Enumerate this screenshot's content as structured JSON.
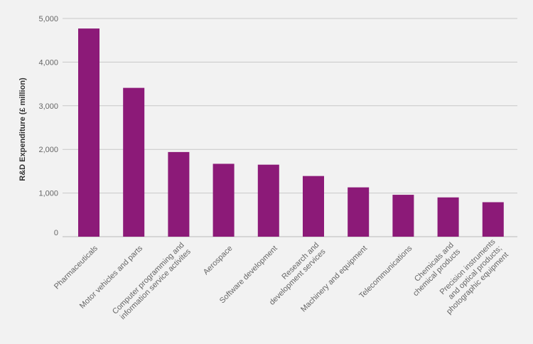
{
  "chart_data": {
    "type": "bar",
    "title": "",
    "xlabel": "",
    "ylabel": "R&D Expenditure (£ million)",
    "ylim": [
      0,
      5000
    ],
    "yticks": [
      0,
      1000,
      2000,
      3000,
      4000,
      5000
    ],
    "ytick_labels": [
      "0",
      "1,000",
      "2,000",
      "3,000",
      "4,000",
      "5,000"
    ],
    "grid": true,
    "categories": [
      [
        "Pharmaceuticals"
      ],
      [
        "Motor vehicles and parts"
      ],
      [
        "Computer programming and",
        "information service activites"
      ],
      [
        "Aerospace"
      ],
      [
        "Software development"
      ],
      [
        "Research and",
        "development services"
      ],
      [
        "Machinery and equipment"
      ],
      [
        "Telecommunications"
      ],
      [
        "Chemicals and",
        "chemical products"
      ],
      [
        "Precision instruments",
        "and optical products;",
        "photographic equipment"
      ]
    ],
    "values": [
      4770,
      3410,
      1940,
      1670,
      1650,
      1390,
      1130,
      960,
      900,
      790
    ],
    "colors": {
      "bar": "#8c1a78",
      "grid": "#c8c8c8",
      "axis": "#bbbbbb"
    }
  }
}
